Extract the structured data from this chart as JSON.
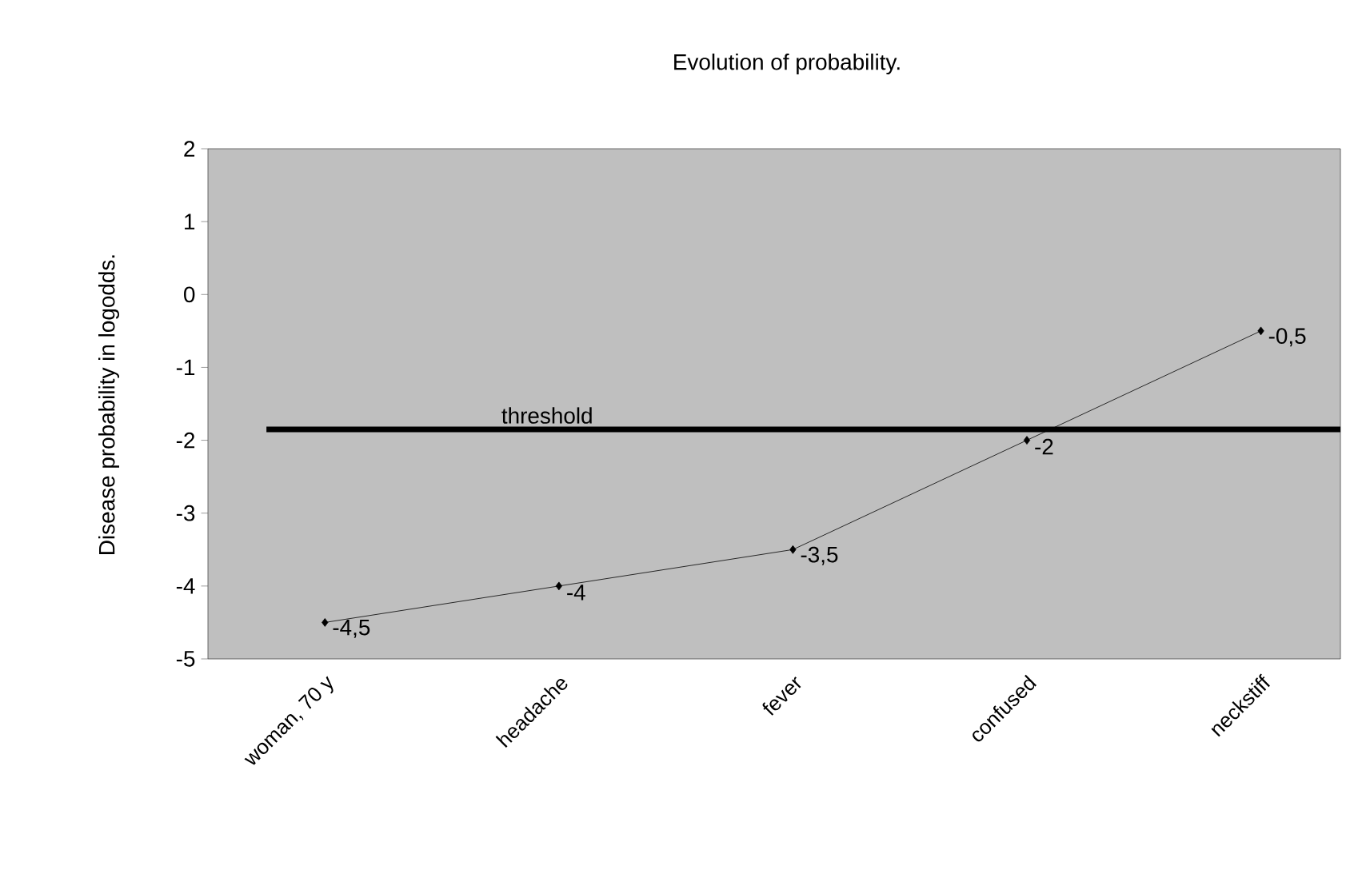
{
  "chart_data": {
    "type": "line",
    "title": "Evolution of probability.",
    "ylabel": "Disease probability in logodds.",
    "categories": [
      "woman, 70 y",
      "headache",
      "fever",
      "confused",
      "neckstiff"
    ],
    "values": [
      -4.5,
      -4,
      -3.5,
      -2,
      -0.5
    ],
    "value_labels": [
      "-4,5",
      "-4",
      "-3,5",
      "-2",
      "-0,5"
    ],
    "color": "#000000",
    "marker": "diamond",
    "line_style": "solid",
    "ylim": [
      -5,
      2
    ],
    "yticks": [
      -5,
      -4,
      -3,
      -2,
      -1,
      0,
      1,
      2
    ],
    "ref_lines": [
      {
        "axis": "y",
        "value": -1.85,
        "label": "threshold",
        "color": "#000000"
      }
    ]
  }
}
